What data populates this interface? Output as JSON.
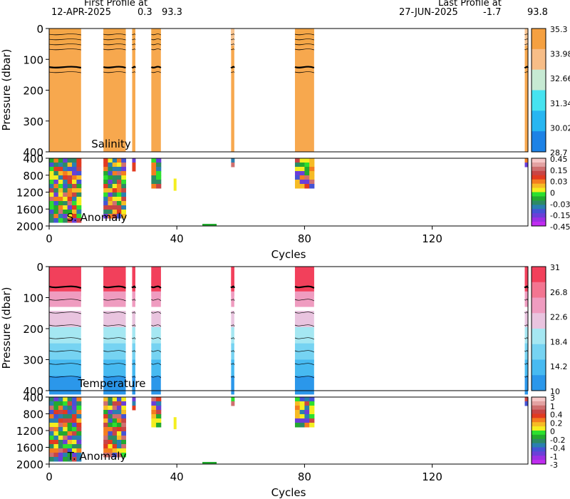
{
  "header": {
    "first_title": "First Profile at",
    "first_date": "12-APR-2025",
    "first_lat": "0.3",
    "first_lon": "93.3",
    "last_title": "Last Profile at",
    "last_date": "27-JUN-2025",
    "last_lat": "-1.7",
    "last_lon": "93.8"
  },
  "colors": {
    "salinity_fill": "#f7a84e",
    "contour": "#000000",
    "temp_warm": "#f0455d",
    "temp_cold": "#2b97ea"
  },
  "chart_data": [
    {
      "id": "salinity",
      "type": "heatmap",
      "label": "Salinity",
      "ylabel": "Pressure (dbar)",
      "x_range": [
        0,
        150
      ],
      "y_range": [
        0,
        400
      ],
      "y_ticks": [
        "0",
        "100",
        "200",
        "300",
        "400"
      ],
      "colorbar": [
        "35.3",
        "33.98",
        "32.66",
        "31.34",
        "30.02",
        "28.7"
      ],
      "colorbar_colors": [
        "#f5a040",
        "#f7bd87",
        "#c7ead3",
        "#46e3f0",
        "#27b6f1",
        "#1d82e6"
      ],
      "cycles": [
        [
          0,
          10
        ],
        [
          17,
          24
        ],
        [
          26,
          27
        ],
        [
          32,
          35
        ],
        [
          57,
          58
        ],
        [
          77,
          83
        ],
        [
          149,
          150
        ]
      ]
    },
    {
      "id": "salinity_anomaly",
      "type": "heatmap",
      "label": "S. Anomaly",
      "x_range": [
        0,
        150
      ],
      "y_range": [
        400,
        2000
      ],
      "y_ticks": [
        "400",
        "800",
        "1200",
        "1600",
        "2000"
      ],
      "colorbar": [
        "0.45",
        "0.15",
        "0.03",
        "0",
        "-0.03",
        "-0.15",
        "-0.45"
      ],
      "colorbar_colors": [
        "#f6c8c8",
        "#e3a2a2",
        "#cf6f6f",
        "#c84545",
        "#e23a20",
        "#f47d1f",
        "#f6bb25",
        "#f4ee20",
        "#2ce02f",
        "#23a92f",
        "#2d8a65",
        "#2a7fb0",
        "#4553d5",
        "#6b3fd8",
        "#9c2fe4",
        "#c02cf0"
      ],
      "xlabel": "Cycles",
      "x_ticks": [
        "0",
        "40",
        "80",
        "120"
      ]
    },
    {
      "id": "temperature",
      "type": "heatmap",
      "label": "Temperature",
      "ylabel": "Pressure (dbar)",
      "x_range": [
        0,
        150
      ],
      "y_range": [
        0,
        400
      ],
      "y_ticks": [
        "0",
        "100",
        "200",
        "300",
        "400"
      ],
      "colorbar": [
        "31",
        "26.8",
        "22.6",
        "18.4",
        "14.2",
        "10"
      ],
      "colorbar_colors": [
        "#f2405b",
        "#f37591",
        "#ef9cc0",
        "#e9c4df",
        "#a5e7f2",
        "#76d3f2",
        "#47baf1",
        "#2b97ea"
      ],
      "cycles": [
        [
          0,
          10
        ],
        [
          17,
          24
        ],
        [
          26,
          27
        ],
        [
          32,
          35
        ],
        [
          57,
          58
        ],
        [
          77,
          83
        ],
        [
          149,
          150
        ]
      ]
    },
    {
      "id": "temperature_anomaly",
      "type": "heatmap",
      "label": "T. Anomaly",
      "x_range": [
        0,
        150
      ],
      "y_range": [
        400,
        2000
      ],
      "y_ticks": [
        "400",
        "800",
        "1200",
        "1600",
        "2000"
      ],
      "colorbar": [
        "3",
        "1",
        "0.4",
        "0.2",
        "0",
        "-0.2",
        "-0.4",
        "-1",
        "-3"
      ],
      "colorbar_colors": [
        "#f6c8c8",
        "#e3a2a2",
        "#cf6f6f",
        "#c84545",
        "#e23a20",
        "#f47d1f",
        "#f6bb25",
        "#f4ee20",
        "#2ce02f",
        "#23a92f",
        "#2d8a65",
        "#2a7fb0",
        "#4553d5",
        "#6b3fd8",
        "#9c2fe4",
        "#c02cf0"
      ],
      "xlabel": "Cycles",
      "x_ticks": [
        "0",
        "40",
        "80",
        "120"
      ]
    }
  ]
}
